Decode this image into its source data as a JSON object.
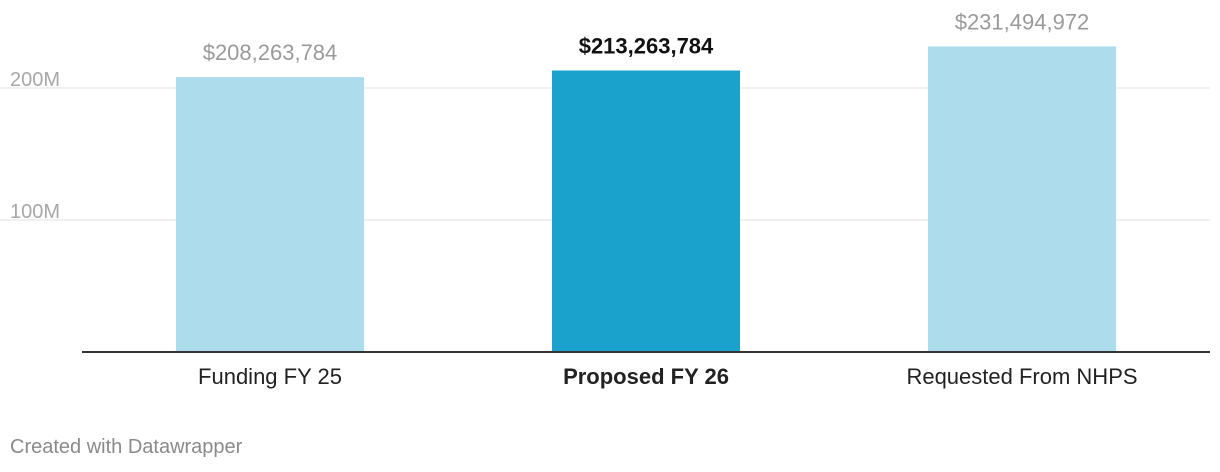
{
  "chart_data": {
    "type": "bar",
    "title": "",
    "xlabel": "",
    "ylabel": "",
    "categories": [
      "Funding FY 25",
      "Proposed FY 26",
      "Requested From NHPS"
    ],
    "values": [
      208263784,
      213263784,
      231494972
    ],
    "value_labels": [
      "$208,263,784",
      "$213,263,784",
      "$231,494,972"
    ],
    "highlighted": [
      false,
      true,
      false
    ],
    "y_ticks": [
      100000000,
      200000000
    ],
    "y_tick_labels": [
      "100M",
      "200M"
    ],
    "ylim": [
      0,
      231494972
    ],
    "grid": true,
    "legend": "none",
    "colors": {
      "bar": "#addded",
      "bar_highlight": "#1aa1cc",
      "value_label": "#9a9a9a",
      "value_label_highlight": "#111111",
      "tick_label": "#a8a8a8",
      "grid": "#e0e0e0",
      "axis": "#333333"
    }
  },
  "footer": {
    "credit": "Created with Datawrapper"
  }
}
